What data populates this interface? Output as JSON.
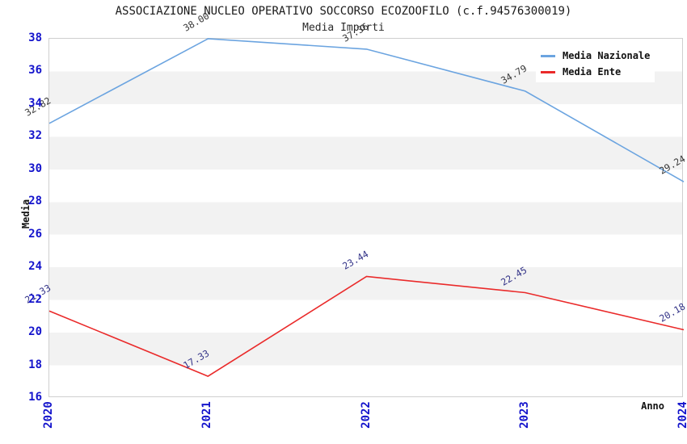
{
  "title": "ASSOCIAZIONE NUCLEO OPERATIVO SOCCORSO ECOZOOFILO (c.f.94576300019)",
  "subtitle": "Media Importi",
  "axes": {
    "y_label": "Media",
    "x_label": "Anno"
  },
  "colors": {
    "tick_label": "#1414cc",
    "band_gray": "#f2f2f2",
    "plot_border": "#cfcfcf",
    "nazionale_line": "#6ba4e0",
    "ente_line": "#ea2a2a",
    "nazionale_point_label": "#383838",
    "ente_point_label": "#333388"
  },
  "chart_data": {
    "type": "line",
    "title": "ASSOCIAZIONE NUCLEO OPERATIVO SOCCORSO ECOZOOFILO (c.f.94576300019)",
    "subtitle": "Media Importi",
    "x": [
      "2020",
      "2021",
      "2022",
      "2023",
      "2024"
    ],
    "series": [
      {
        "name": "Media Nazionale",
        "color": "#6ba4e0",
        "values": [
          32.82,
          38.0,
          37.36,
          34.79,
          29.24
        ],
        "labels": [
          "32.82",
          "38.00",
          "37.36",
          "34.79",
          "29.24"
        ],
        "label_color": "#383838"
      },
      {
        "name": "Media Ente",
        "color": "#ea2a2a",
        "values": [
          21.33,
          17.33,
          23.44,
          22.45,
          20.18
        ],
        "labels": [
          "21.33",
          "17.33",
          "23.44",
          "22.45",
          "20.18"
        ],
        "label_color": "#333388"
      }
    ],
    "xlabel": "Anno",
    "ylabel": "Media",
    "ylim": [
      16,
      38
    ],
    "y_ticks": [
      38,
      36,
      34,
      32,
      30,
      28,
      26,
      24,
      22,
      20,
      18,
      16
    ],
    "grid": "horizontal-bands",
    "legend_position": "top-right"
  }
}
